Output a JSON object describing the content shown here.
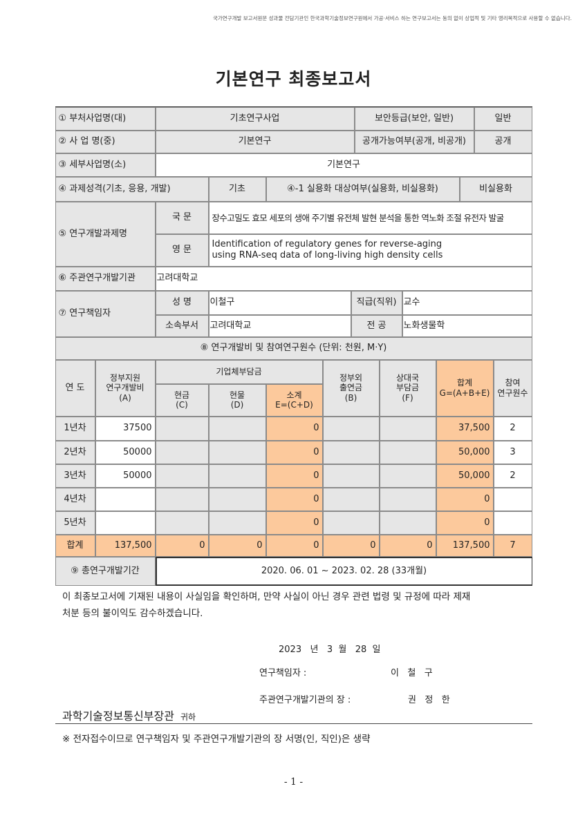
{
  "notice": "국가연구개발 보고서원문 성과물 전담기관인 한국과학기술정보연구원에서 가공·서비스 하는 연구보고서는 동의 없이 상업적 및 기타 영리목적으로 사용할 수 없습니다.",
  "title": "기본연구 최종보고서",
  "info": {
    "r1_label": "① 부처사업명(대)",
    "r1_value": "기초연구사업",
    "r1_label2": "보안등급(보안, 일반)",
    "r1_value2": "일반",
    "r2_label": "② 사  업  명(중)",
    "r2_value": "기본연구",
    "r2_label2": "공개가능여부(공개, 비공개)",
    "r2_value2": "공개",
    "r3_label": "③ 세부사업명(소)",
    "r3_value": "기본연구",
    "r4_label": "④ 과제성격(기초, 응용, 개발)",
    "r4_value": "기초",
    "r4_label2": "④-1 실용화 대상여부(실용화, 비실용화)",
    "r4_value2": "비실용화",
    "r5_label": "⑤ 연구개발과제명",
    "r5_kor_label": "국 문",
    "r5_kor": "장수고밀도 효모 세포의 생애 주기별 유전체 발현 분석을 통한 역노화 조절 유전자 발굴",
    "r5_eng_label": "영 문",
    "r5_eng_1": "Identification of regulatory genes for reverse-aging",
    "r5_eng_2": "using RNA-seq data of long-living high density cells",
    "r6_label": "⑥ 주관연구개발기관",
    "r6_value": "고려대학교",
    "r7_label": "⑦ 연구책임자",
    "r7_name_label": "성 명",
    "r7_name": "이철구",
    "r7_pos_label": "직급(직위)",
    "r7_pos": "교수",
    "r7_dept_label": "소속부서",
    "r7_dept": "고려대학교",
    "r7_major_label": "전 공",
    "r7_major": "노화생물학",
    "r8_label": "⑧ 연구개발비 및 참여연구원수 (단위: 천원, M·Y)"
  },
  "budget": {
    "headers": {
      "year": "연 도",
      "gov": "정부지원\n연구개발비\n(A)",
      "corp": "기업체부담금",
      "cash": "현금\n(C)",
      "kind": "현물\n(D)",
      "sub": "소계\nE=(C+D)",
      "nongov": "정부외\n출연금\n(B)",
      "partner": "상대국\n부담금\n(F)",
      "total": "합계\nG=(A+B+E)",
      "people": "참여\n연구원수"
    },
    "rows": [
      {
        "year": "1년차",
        "gov": "37500",
        "cash": "",
        "kind": "",
        "sub": "0",
        "nongov": "",
        "partner": "",
        "total": "37,500",
        "people": "2"
      },
      {
        "year": "2년차",
        "gov": "50000",
        "cash": "",
        "kind": "",
        "sub": "0",
        "nongov": "",
        "partner": "",
        "total": "50,000",
        "people": "3"
      },
      {
        "year": "3년차",
        "gov": "50000",
        "cash": "",
        "kind": "",
        "sub": "0",
        "nongov": "",
        "partner": "",
        "total": "50,000",
        "people": "2"
      },
      {
        "year": "4년차",
        "gov": "",
        "cash": "",
        "kind": "",
        "sub": "0",
        "nongov": "",
        "partner": "",
        "total": "0",
        "people": ""
      },
      {
        "year": "5년차",
        "gov": "",
        "cash": "",
        "kind": "",
        "sub": "0",
        "nongov": "",
        "partner": "",
        "total": "0",
        "people": ""
      }
    ],
    "sum": {
      "year": "합계",
      "gov": "137,500",
      "cash": "0",
      "kind": "0",
      "sub": "0",
      "nongov": "0",
      "partner": "0",
      "total": "137,500",
      "people": "7"
    }
  },
  "period": {
    "label": "⑨ 총연구개발기간",
    "value": "2020. 06. 01 ~ 2023. 02. 28 (33개월)"
  },
  "statement_1": "이 최종보고서에 기재된 내용이 사실임을 확인하며, 만약 사실이 아닌 경우 관련 법령 및 규정에 따라 제재",
  "statement_2": "처분 등의 불이익도 감수하겠습니다.",
  "date": "2023   년   3  월   28  일",
  "pi_label": "연구책임자 :",
  "pi_name": "이   철   구",
  "head_label": "주관연구개발기관의 장 :",
  "head_name": "권   정   한",
  "addressee": "과학기술정보통신부장관",
  "addressee_suffix": "귀하",
  "footnote": "※ 전자접수이므로 연구책임자 및 주관연구개발기관의 장 서명(인, 직인)은 생략",
  "page_number": "- 1 -",
  "colors": {
    "label_gray": "#e6e6e6",
    "highlight_orange": "#fcc99c"
  }
}
